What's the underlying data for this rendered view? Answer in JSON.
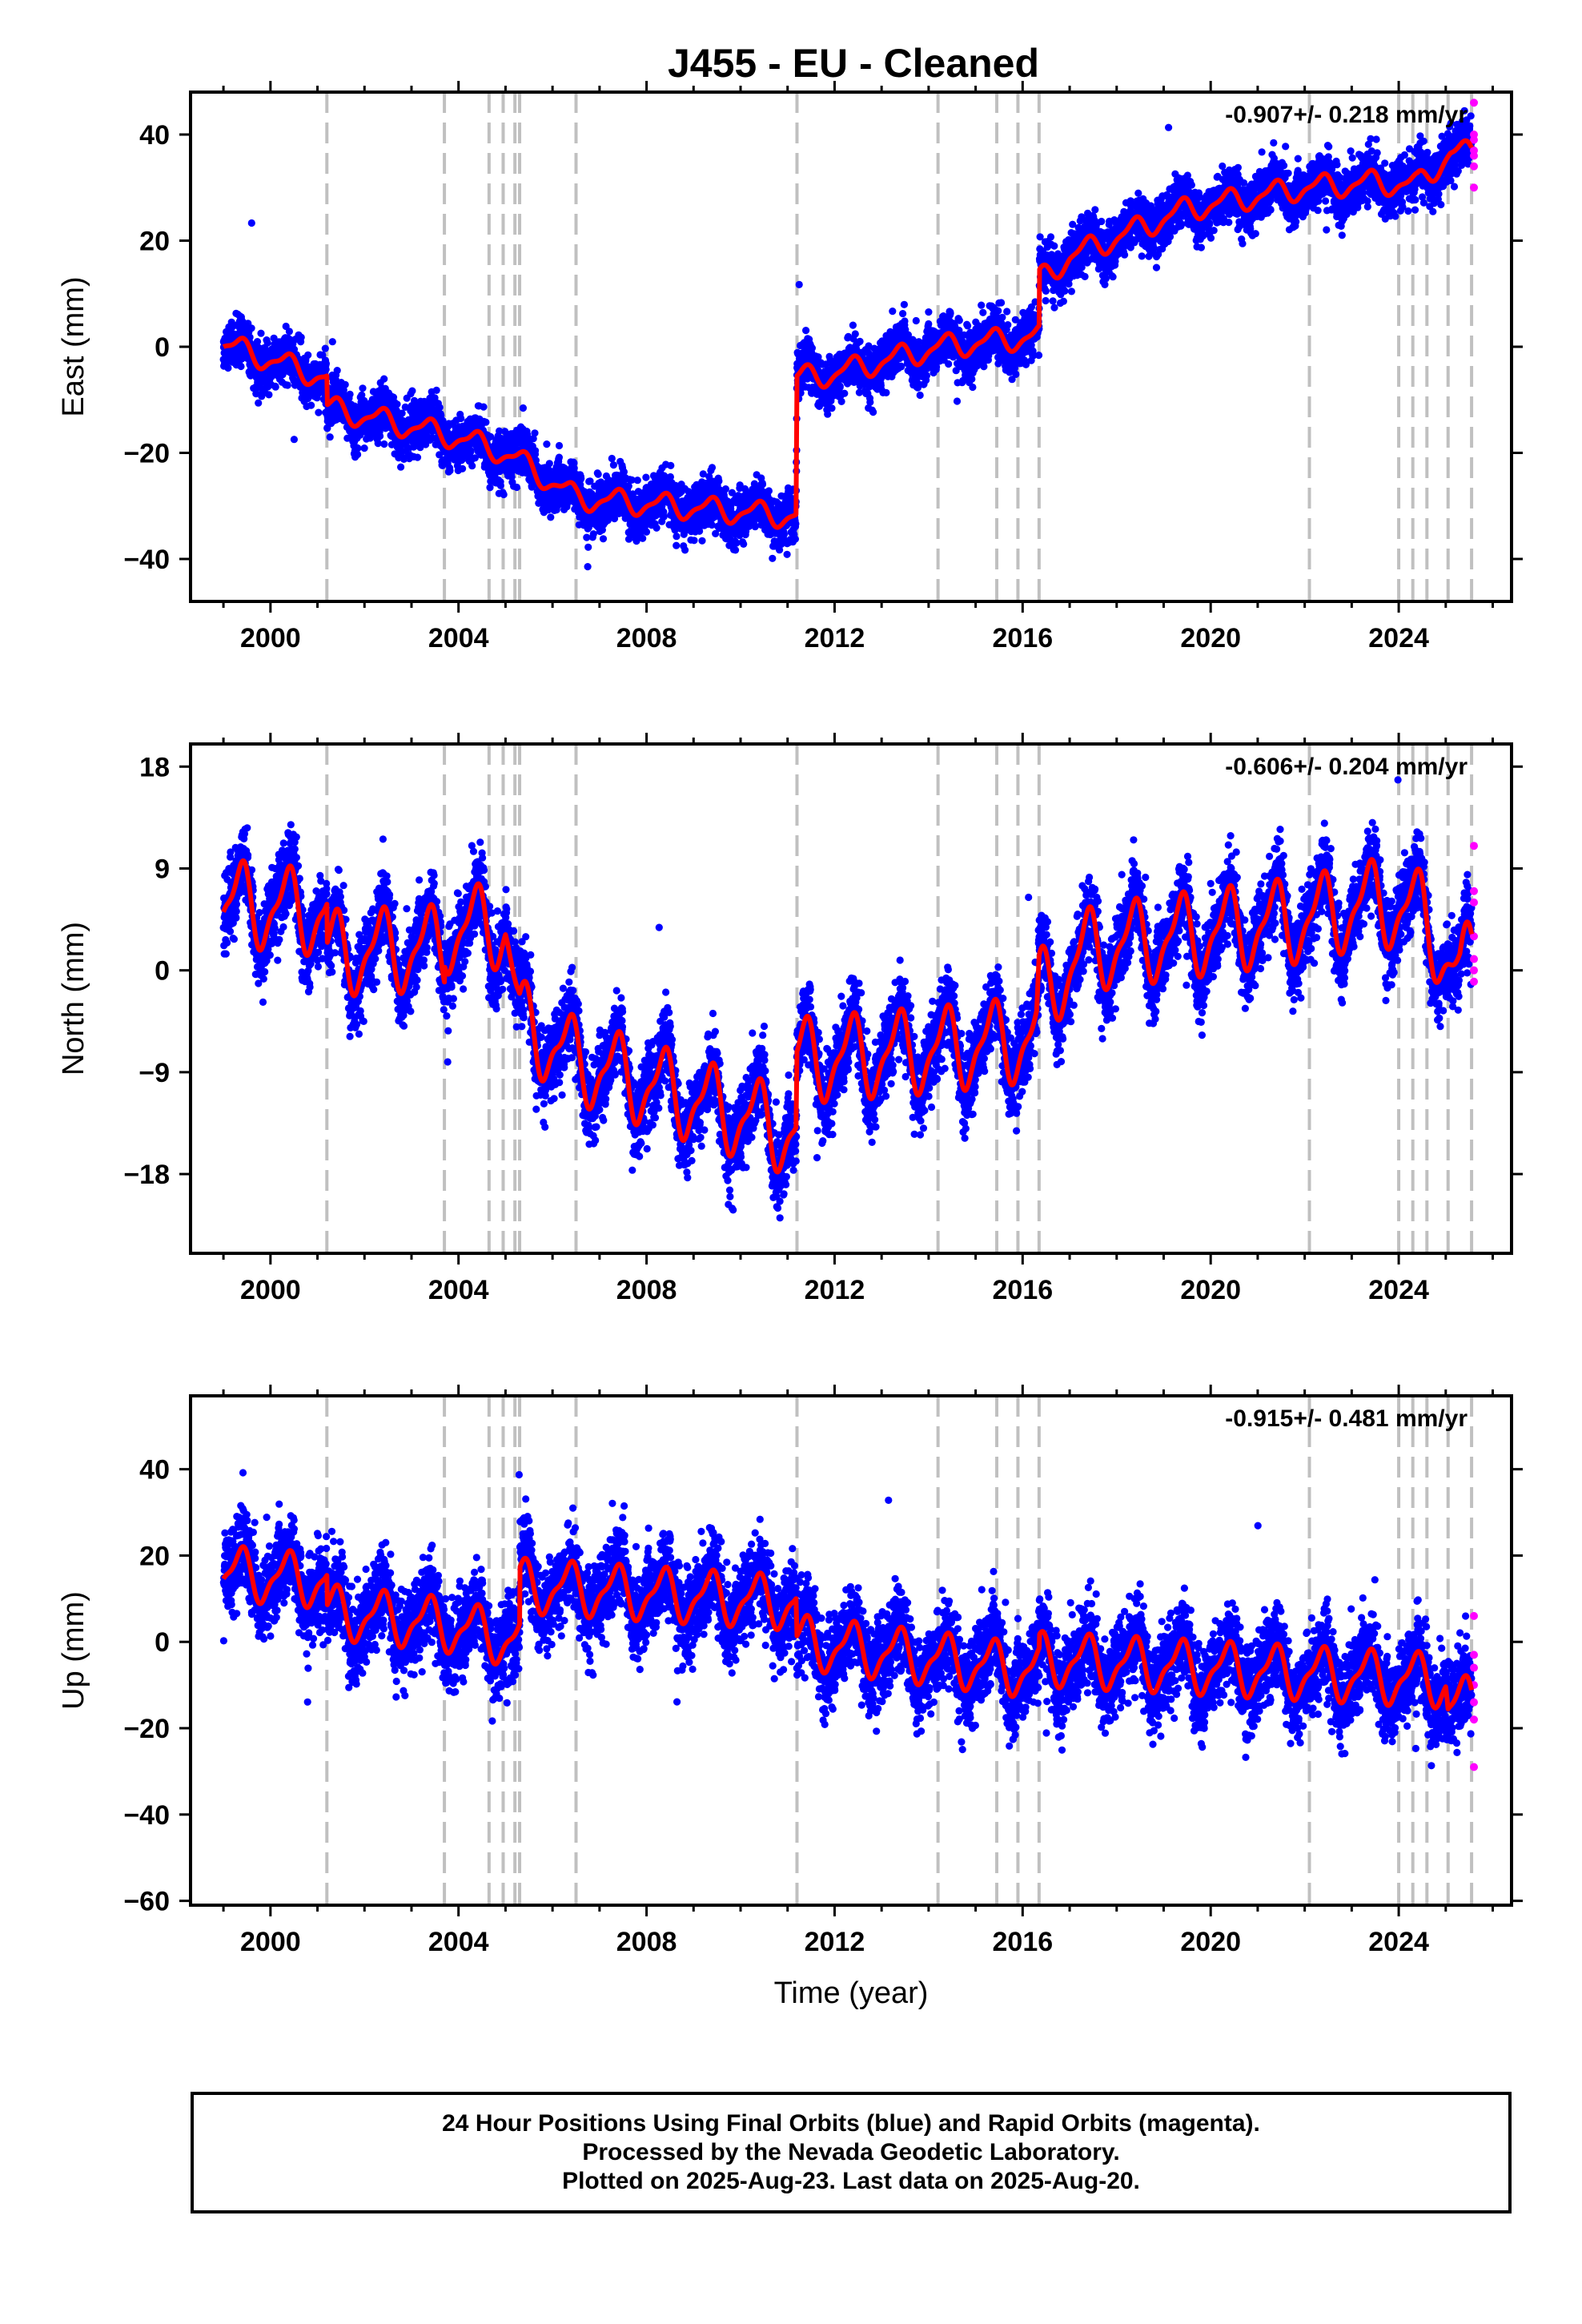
{
  "title": "J455  - EU - Cleaned",
  "colors": {
    "final": "#0000ff",
    "rapid": "#ff00ff",
    "model": "#ff0000",
    "steps": "#c0c0c0"
  },
  "footer": {
    "line1": "24 Hour Positions Using Final Orbits (blue) and Rapid Orbits (magenta).",
    "line2": "Processed by the Nevada Geodetic Laboratory.",
    "line3": "Plotted on 2025-Aug-23. Last data on 2025-Aug-20."
  },
  "chart_data": [
    {
      "type": "scatter",
      "component": "East",
      "ylabel": "East (mm)",
      "xlabel": "",
      "rate": "-0.907+/- 0.218 mm/yr",
      "xlim": [
        1998.3,
        2026.4
      ],
      "ylim": [
        -48,
        48
      ],
      "yticks": [
        40,
        20,
        0,
        -20,
        -40
      ],
      "xticks": [
        2000,
        2004,
        2008,
        2012,
        2016,
        2020,
        2024
      ],
      "model_knots": [
        [
          1999.0,
          0.5
        ],
        [
          2001.2,
          -6.0
        ],
        [
          2001.2,
          -11.5
        ],
        [
          2003.7,
          -16.5
        ],
        [
          2004.7,
          -19.0
        ],
        [
          2005.3,
          -21.5
        ],
        [
          2006.5,
          -28.5
        ],
        [
          2011.18,
          -32.0
        ],
        [
          2011.2,
          -6.0
        ],
        [
          2012.0,
          -5.0
        ],
        [
          2014.25,
          0.0
        ],
        [
          2016.35,
          2.0
        ],
        [
          2016.36,
          12.5
        ],
        [
          2017.0,
          17.0
        ],
        [
          2019.5,
          26.0
        ],
        [
          2022.0,
          30.0
        ],
        [
          2023.5,
          31.0
        ],
        [
          2024.4,
          30.5
        ],
        [
          2025.1,
          36.5
        ],
        [
          2025.55,
          36.5
        ]
      ],
      "seasonal_amplitude": 2.0,
      "scatter_sd": 2.3,
      "rapid_values": [
        46,
        40,
        39,
        37,
        36,
        34,
        30
      ]
    },
    {
      "type": "scatter",
      "component": "North",
      "ylabel": "North (mm)",
      "xlabel": "",
      "rate": "-0.606+/- 0.204 mm/yr",
      "xlim": [
        1998.3,
        2026.4
      ],
      "ylim": [
        -25,
        20
      ],
      "yticks": [
        18,
        9,
        0,
        -9,
        -18
      ],
      "xticks": [
        2000,
        2004,
        2008,
        2012,
        2016,
        2020,
        2024
      ],
      "model_knots": [
        [
          1999.0,
          6.0
        ],
        [
          2001.2,
          5.0
        ],
        [
          2001.2,
          1.5
        ],
        [
          2003.7,
          2.0
        ],
        [
          2003.7,
          3.5
        ],
        [
          2005.0,
          4.0
        ],
        [
          2005.3,
          -4.5
        ],
        [
          2006.5,
          -8.0
        ],
        [
          2011.18,
          -14.5
        ],
        [
          2011.2,
          -8.0
        ],
        [
          2014.25,
          -7.0
        ],
        [
          2016.3,
          -6.0
        ],
        [
          2016.35,
          -2.0
        ],
        [
          2017.5,
          2.0
        ],
        [
          2022.0,
          4.5
        ],
        [
          2023.5,
          6.0
        ],
        [
          2024.5,
          5.0
        ],
        [
          2025.3,
          -1.0
        ],
        [
          2025.55,
          1.5
        ]
      ],
      "seasonal_amplitude": 3.3,
      "scatter_sd": 1.7,
      "rapid_values": [
        11,
        7,
        6,
        3,
        1,
        0,
        -1
      ]
    },
    {
      "type": "scatter",
      "component": "Up",
      "ylabel": "Up (mm)",
      "xlabel": "Time (year)",
      "rate": "-0.915+/- 0.481 mm/yr",
      "xlim": [
        1998.3,
        2026.4
      ],
      "ylim": [
        -61,
        57
      ],
      "yticks": [
        40,
        20,
        0,
        -20,
        -40,
        -60
      ],
      "xticks": [
        2000,
        2004,
        2008,
        2012,
        2016,
        2020,
        2024
      ],
      "model_knots": [
        [
          1999.0,
          16.0
        ],
        [
          2001.2,
          14.0
        ],
        [
          2001.2,
          7.0
        ],
        [
          2003.7,
          4.0
        ],
        [
          2005.3,
          0.0
        ],
        [
          2005.31,
          13.0
        ],
        [
          2011.18,
          9.0
        ],
        [
          2011.2,
          0.0
        ],
        [
          2016.35,
          -7.0
        ],
        [
          2016.36,
          -4.0
        ],
        [
          2025.0,
          -9.0
        ],
        [
          2025.05,
          -15.0
        ],
        [
          2025.55,
          -14.0
        ]
      ],
      "seasonal_amplitude": 5.5,
      "scatter_sd": 4.8,
      "rapid_values": [
        6,
        -3,
        -6,
        -10,
        -14,
        -18,
        -29
      ]
    }
  ],
  "step_epochs": [
    2001.2,
    2003.7,
    2004.65,
    2004.95,
    2005.2,
    2005.3,
    2006.5,
    2011.2,
    2014.2,
    2015.45,
    2015.9,
    2016.35,
    2022.1,
    2024.0,
    2024.3,
    2024.6,
    2025.05,
    2025.55
  ]
}
